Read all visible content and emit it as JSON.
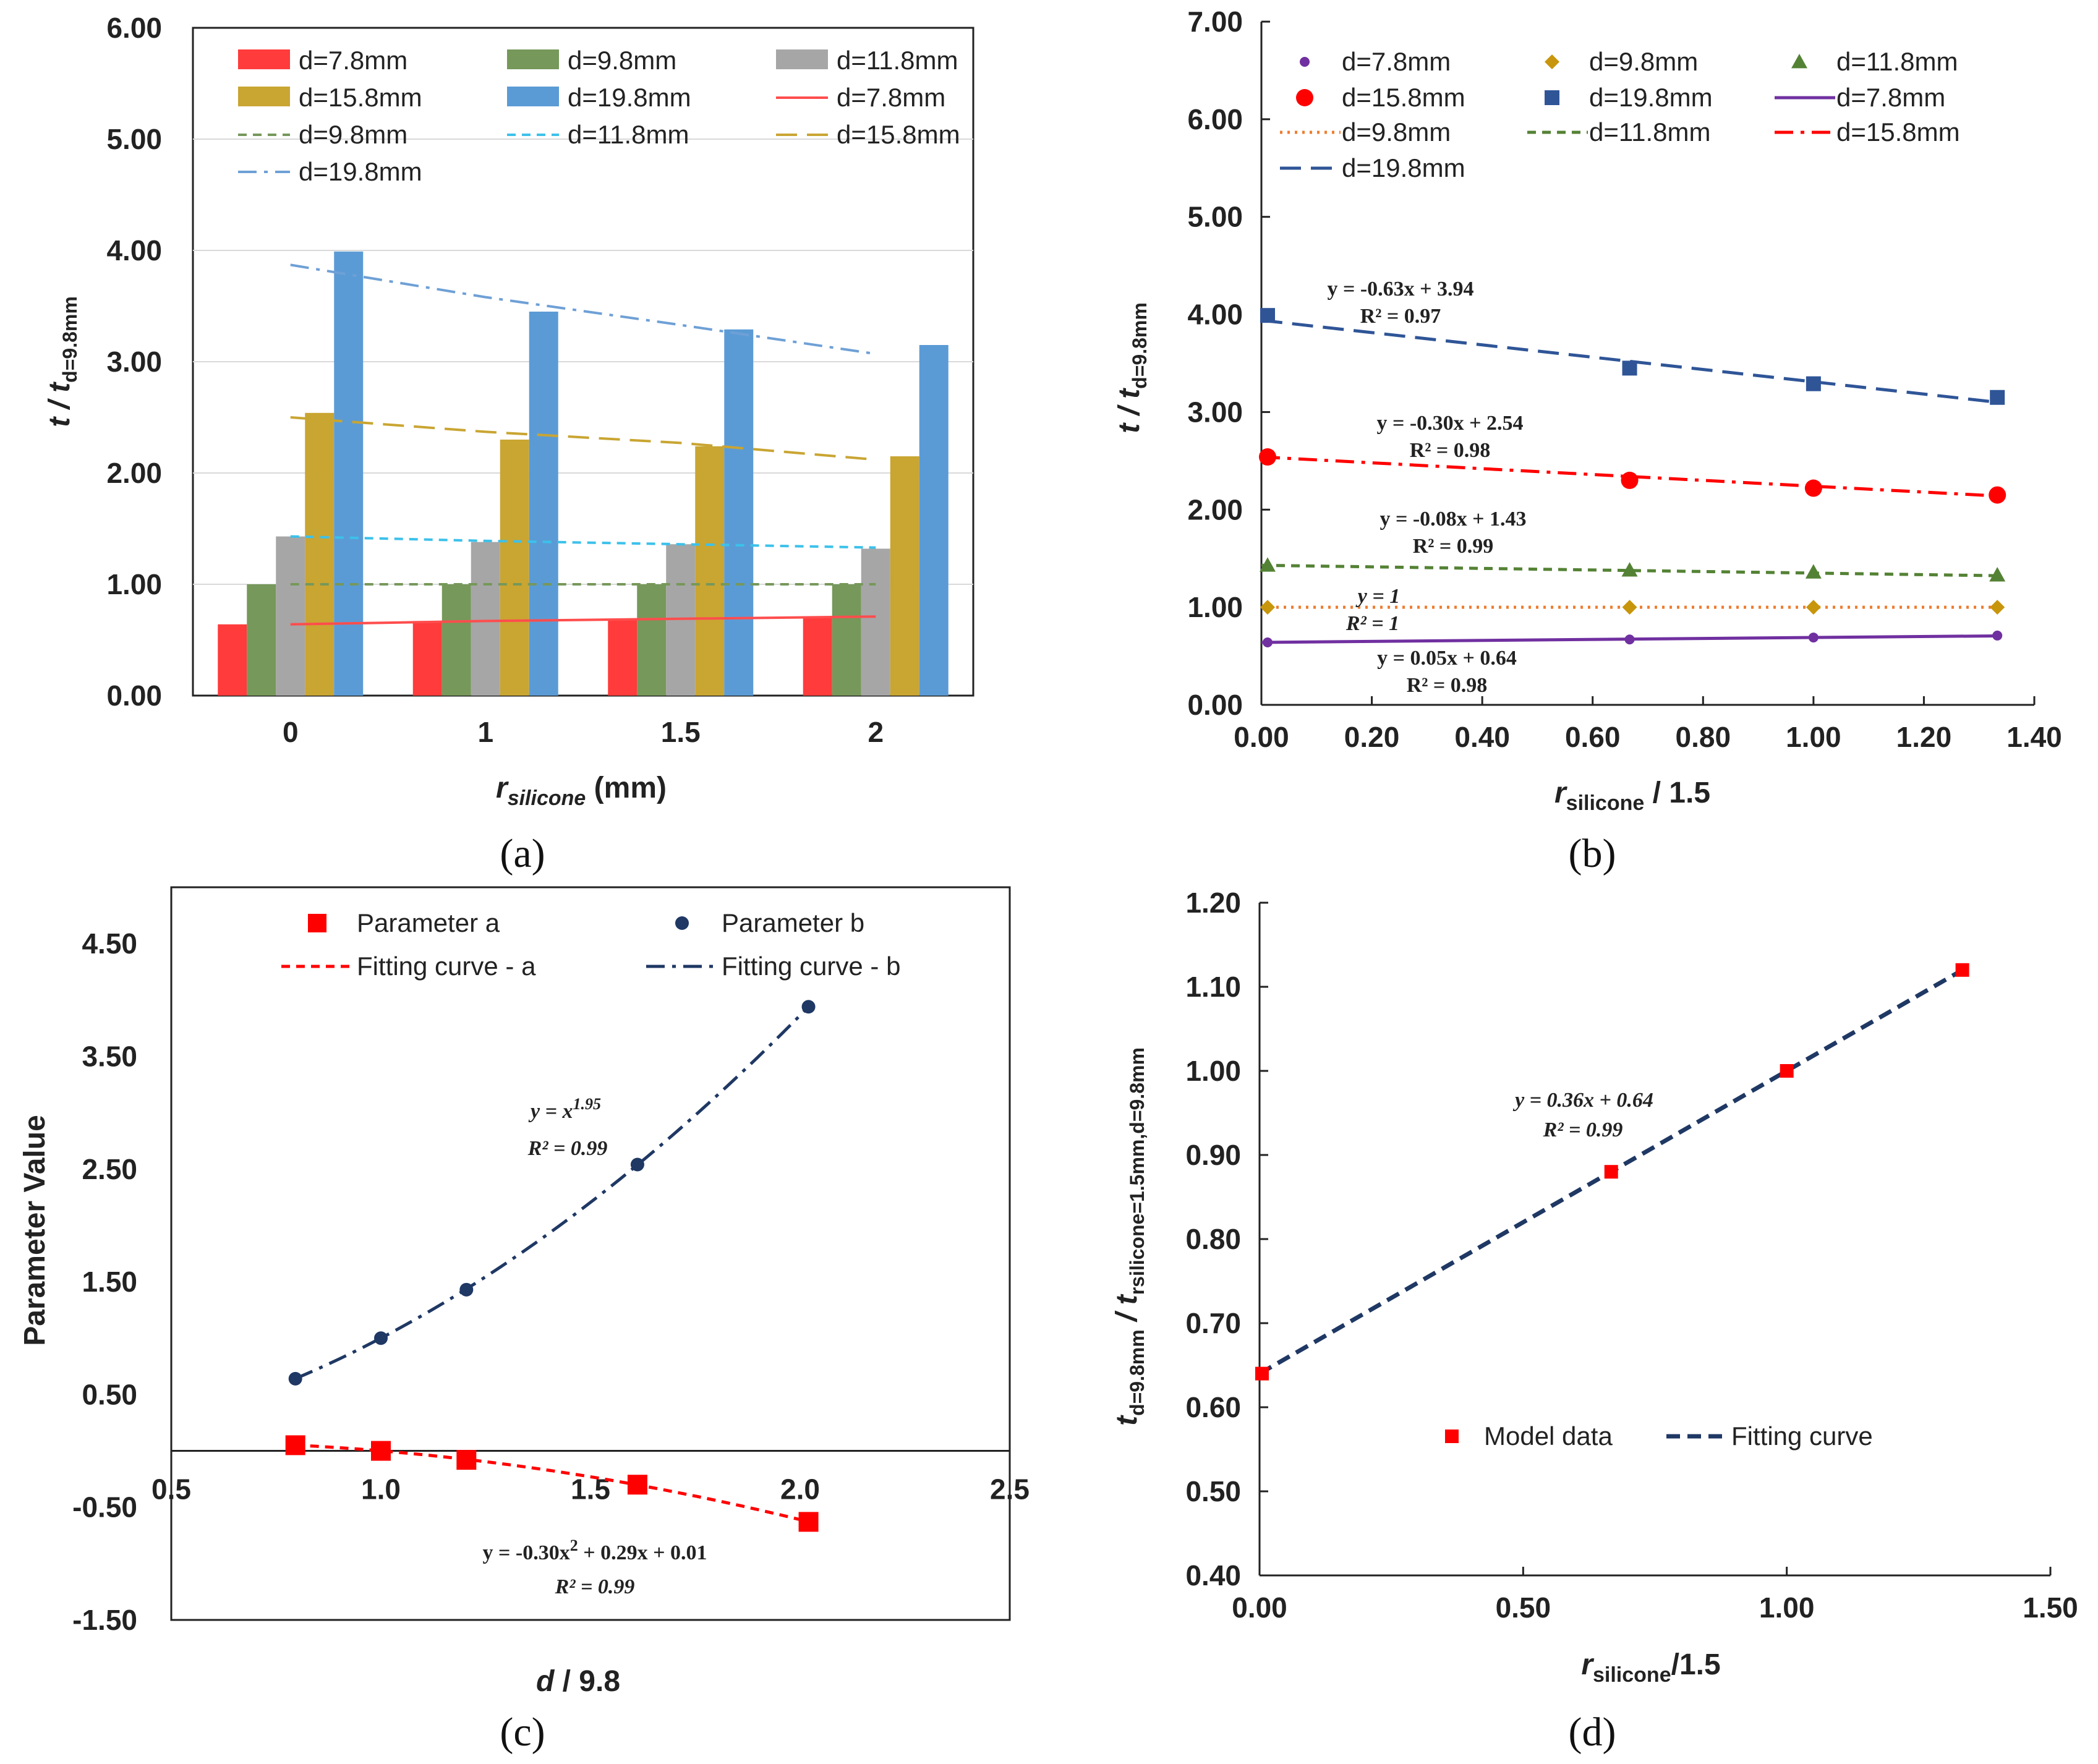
{
  "panels": {
    "a": "(a)",
    "b": "(b)",
    "c": "(c)",
    "d": "(d)"
  },
  "axes": {
    "a_x": {
      "main": "r",
      "sub": "silicone",
      "rest": " (mm)"
    },
    "a_y": {
      "main": "t / t",
      "sub": "d=9.8mm"
    },
    "b_x": {
      "main": "r",
      "sub": "silicone",
      "rest": " / 1.5"
    },
    "b_y": {
      "main": "t / t",
      "sub": "d=9.8mm"
    },
    "c_x": {
      "main": "d",
      "rest": " / 9.8"
    },
    "c_y": {
      "main": "Parameter Value"
    },
    "d_x": {
      "main": "r",
      "sub": "silicone",
      "rest": "/1.5"
    },
    "d_y": {
      "main": "t",
      "sub1": "d=9.8mm",
      "mid": " / t",
      "sub2": "rsilicone=1.5mm,d=9.8mm"
    }
  },
  "chart_data": [
    {
      "id": "a",
      "type": "bar",
      "categories": [
        "0",
        "1",
        "1.5",
        "2"
      ],
      "ylim": [
        0,
        6
      ],
      "yticks": [
        "0.00",
        "1.00",
        "2.00",
        "3.00",
        "4.00",
        "5.00",
        "6.00"
      ],
      "series": [
        {
          "name": "d=7.8mm",
          "color": "#ff3b3b",
          "values": [
            0.64,
            0.67,
            0.69,
            0.71
          ]
        },
        {
          "name": "d=9.8mm",
          "color": "#76985a",
          "values": [
            1.0,
            1.0,
            1.0,
            1.0
          ]
        },
        {
          "name": "d=11.8mm",
          "color": "#a6a6a6",
          "values": [
            1.43,
            1.38,
            1.36,
            1.32
          ]
        },
        {
          "name": "d=15.8mm",
          "color": "#c9a532",
          "values": [
            2.54,
            2.3,
            2.24,
            2.15
          ]
        },
        {
          "name": "d=19.8mm",
          "color": "#5b9bd5",
          "values": [
            3.99,
            3.45,
            3.29,
            3.15
          ]
        }
      ],
      "trendlines": [
        {
          "name": "d=7.8mm",
          "color": "#ff4d4d",
          "dash": "solid",
          "values": [
            0.64,
            0.67,
            0.69,
            0.71
          ]
        },
        {
          "name": "d=9.8mm",
          "color": "#76985a",
          "dash": "dash",
          "values": [
            1.0,
            1.0,
            1.0,
            1.0
          ]
        },
        {
          "name": "d=11.8mm",
          "color": "#3cc1ea",
          "dash": "dash",
          "values": [
            1.43,
            1.39,
            1.36,
            1.33
          ]
        },
        {
          "name": "d=15.8mm",
          "color": "#c9a532",
          "dash": "longdash",
          "values": [
            2.5,
            2.37,
            2.27,
            2.12
          ]
        },
        {
          "name": "d=19.8mm",
          "color": "#6ea0d6",
          "dash": "dashdot",
          "values": [
            3.87,
            3.58,
            3.33,
            3.07
          ]
        }
      ]
    },
    {
      "id": "b",
      "type": "scatter",
      "xlim": [
        0,
        1.4
      ],
      "ylim": [
        0,
        7
      ],
      "xticks": [
        "0.00",
        "0.20",
        "0.40",
        "0.60",
        "0.80",
        "1.00",
        "1.20",
        "1.40"
      ],
      "yticks": [
        "0.00",
        "1.00",
        "2.00",
        "3.00",
        "4.00",
        "5.00",
        "6.00",
        "7.00"
      ],
      "x": [
        0,
        0.667,
        1.0,
        1.333
      ],
      "series": [
        {
          "name": "d=7.8mm",
          "color": "#7030a0",
          "marker": "dot",
          "values": [
            0.64,
            0.67,
            0.69,
            0.71
          ]
        },
        {
          "name": "d=9.8mm",
          "color": "#c8960c",
          "marker": "diamond",
          "values": [
            1.0,
            1.0,
            1.0,
            1.0
          ]
        },
        {
          "name": "d=11.8mm",
          "color": "#548235",
          "marker": "triangle",
          "values": [
            1.43,
            1.38,
            1.36,
            1.33
          ]
        },
        {
          "name": "d=15.8mm",
          "color": "#ff0000",
          "marker": "circle",
          "values": [
            2.54,
            2.3,
            2.22,
            2.15
          ]
        },
        {
          "name": "d=19.8mm",
          "color": "#2f5597",
          "marker": "square",
          "values": [
            3.99,
            3.45,
            3.29,
            3.15
          ]
        }
      ],
      "fits": [
        {
          "name": "d=7.8mm",
          "color": "#7030a0",
          "dash": "solid",
          "slope": 0.05,
          "intercept": 0.64
        },
        {
          "name": "d=9.8mm",
          "color": "#ed7d31",
          "dash": "dot",
          "slope": 0,
          "intercept": 1.0
        },
        {
          "name": "d=11.8mm",
          "color": "#548235",
          "dash": "dash",
          "slope": -0.08,
          "intercept": 1.43
        },
        {
          "name": "d=15.8mm",
          "color": "#ff0000",
          "dash": "dashdot",
          "slope": -0.3,
          "intercept": 2.54
        },
        {
          "name": "d=19.8mm",
          "color": "#2f5597",
          "dash": "longdash",
          "slope": -0.63,
          "intercept": 3.94
        }
      ],
      "annotations": [
        {
          "y": "y = -0.63x + 3.94",
          "r2": "R² = 0.97"
        },
        {
          "y": "y = -0.30x + 2.54",
          "r2": "R² = 0.98"
        },
        {
          "y": "y = -0.08x + 1.43",
          "r2": "R² = 0.99"
        },
        {
          "y": "y = 1",
          "r2": "R² = 1"
        },
        {
          "y": "y = 0.05x + 0.64",
          "r2": "R² = 0.98"
        }
      ]
    },
    {
      "id": "c",
      "type": "scatter",
      "xlim": [
        0.5,
        2.5
      ],
      "ylim": [
        -1.5,
        5.0
      ],
      "xticks": [
        "0.5",
        "1.0",
        "1.5",
        "2.0",
        "2.5"
      ],
      "yticks": [
        "-1.50",
        "-0.50",
        "0.50",
        "1.50",
        "2.50",
        "3.50",
        "4.50"
      ],
      "series": [
        {
          "name": "Parameter a",
          "color": "#ff0000",
          "marker": "square",
          "x": [
            0.796,
            1.0,
            1.204,
            1.612,
            2.02
          ],
          "values": [
            0.05,
            0.0,
            -0.08,
            -0.3,
            -0.63
          ]
        },
        {
          "name": "Parameter b",
          "color": "#1f3864",
          "marker": "dot",
          "x": [
            0.796,
            1.0,
            1.204,
            1.612,
            2.02
          ],
          "values": [
            0.64,
            1.0,
            1.43,
            2.54,
            3.94
          ]
        }
      ],
      "fits": [
        {
          "name": "Fitting curve - a",
          "color": "#ff0000",
          "dash": "dash",
          "formula": "poly",
          "coef": [
            -0.3,
            0.29,
            0.01
          ]
        },
        {
          "name": "Fitting curve - b",
          "color": "#1f3864",
          "dash": "dashdot",
          "formula": "power",
          "exponent": 1.95
        }
      ],
      "annotations": [
        {
          "line1": "y = x",
          "sup": "1.95",
          "line2": "R² = 0.99"
        },
        {
          "line1": "y = -0.30x",
          "sup": "2",
          "rest": " + 0.29x + 0.01",
          "line2": "R² = 0.99"
        }
      ]
    },
    {
      "id": "d",
      "type": "scatter",
      "xlim": [
        0,
        1.5
      ],
      "ylim": [
        0.4,
        1.2
      ],
      "xticks": [
        "0.00",
        "0.50",
        "1.00",
        "1.50"
      ],
      "yticks": [
        "0.40",
        "0.50",
        "0.60",
        "0.70",
        "0.80",
        "0.90",
        "1.00",
        "1.10",
        "1.20"
      ],
      "series": [
        {
          "name": "Model data",
          "color": "#ff0000",
          "marker": "square",
          "x": [
            0,
            0.667,
            1.0,
            1.333
          ],
          "values": [
            0.64,
            0.88,
            1.0,
            1.12
          ]
        }
      ],
      "fits": [
        {
          "name": "Fitting curve",
          "color": "#1f3864",
          "dash": "dash",
          "slope": 0.36,
          "intercept": 0.64
        }
      ],
      "annotations": [
        {
          "y": "y = 0.36x + 0.64",
          "r2": "R² = 0.99"
        }
      ]
    }
  ]
}
